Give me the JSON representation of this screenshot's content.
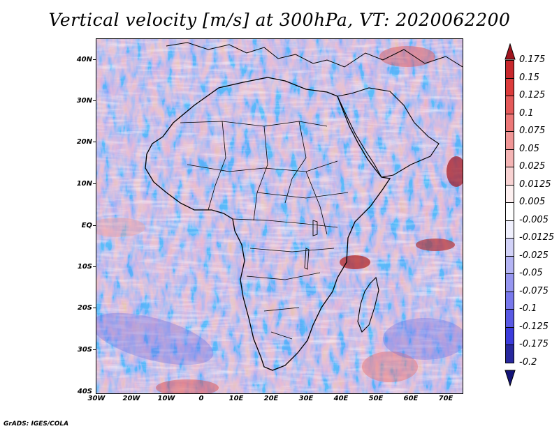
{
  "title": "Vertical velocity [m/s] at 300hPa, VT: 2020062200",
  "footer": "GrADS: IGES/COLA",
  "lat_labels": [
    "40N",
    "30N",
    "20N",
    "10N",
    "EQ",
    "10S",
    "20S",
    "30S",
    "40S"
  ],
  "lon_labels": [
    "30W",
    "20W",
    "10W",
    "0",
    "10E",
    "20E",
    "30E",
    "40E",
    "50E",
    "60E",
    "70E"
  ],
  "map": {
    "region": "Africa",
    "lat_range": [
      -40,
      45
    ],
    "lon_range": [
      -30,
      75
    ],
    "variable": "Vertical velocity",
    "units": "m/s",
    "level": "300hPa"
  },
  "colorbar": {
    "levels": [
      "0.175",
      "0.15",
      "0.125",
      "0.1",
      "0.075",
      "0.05",
      "0.025",
      "0.0125",
      "0.005",
      "-0.005",
      "-0.0125",
      "-0.025",
      "-0.05",
      "-0.075",
      "-0.1",
      "-0.125",
      "-0.175",
      "-0.2"
    ],
    "colors": [
      "#a0141e",
      "#c8282d",
      "#dc3c3c",
      "#e45a5a",
      "#ec7878",
      "#f09696",
      "#f4b4b4",
      "#f8d2d2",
      "#fdf0f0",
      "#ffffff",
      "#f0f0fd",
      "#d2d2f8",
      "#b4b4f4",
      "#9696f0",
      "#7878ec",
      "#5a5ae4",
      "#3c3cdc",
      "#28289e",
      "#141478"
    ]
  }
}
